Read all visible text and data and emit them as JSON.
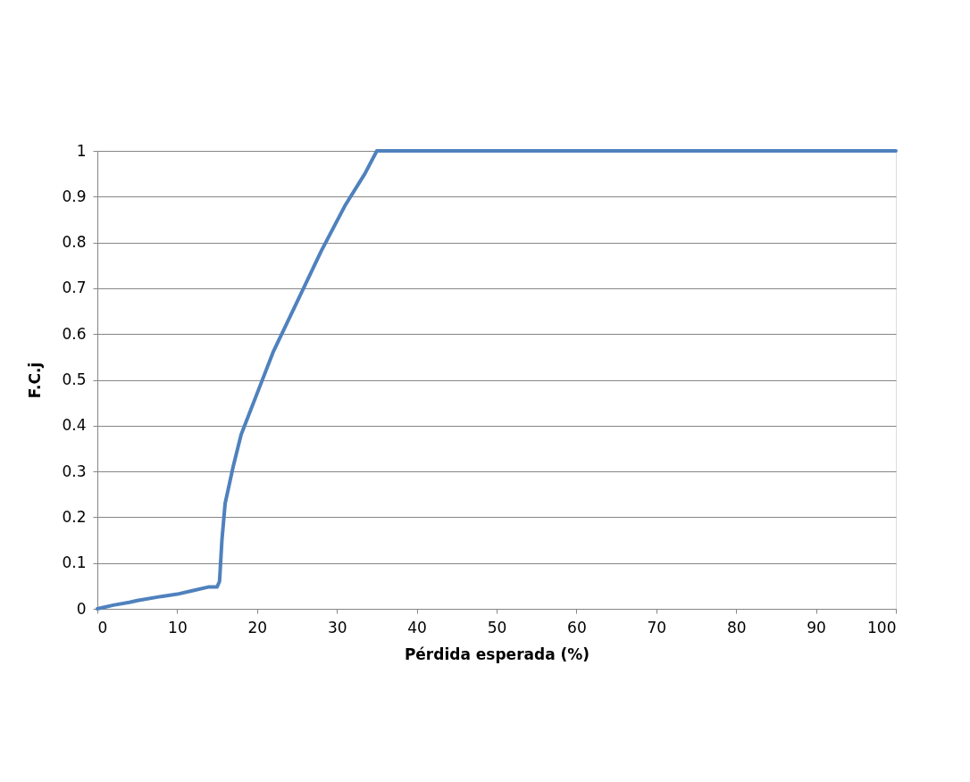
{
  "chart_data": {
    "type": "line",
    "xlabel": "Pérdida esperada (%)",
    "ylabel": "F.C.j",
    "x": [
      0,
      2,
      4,
      5,
      8,
      10,
      12,
      14,
      15,
      15.3,
      15.6,
      16,
      17,
      18,
      20,
      22,
      25,
      28,
      31,
      33.5,
      35,
      100
    ],
    "series": [
      {
        "color": "#4f81bd",
        "values": [
          0,
          0.008,
          0.014,
          0.018,
          0.027,
          0.032,
          0.04,
          0.048,
          0.048,
          0.06,
          0.15,
          0.23,
          0.31,
          0.38,
          0.47,
          0.56,
          0.67,
          0.78,
          0.88,
          0.95,
          1.0,
          1.0
        ]
      }
    ],
    "xlim": [
      0,
      100
    ],
    "xticks": [
      0,
      10,
      20,
      30,
      40,
      50,
      60,
      70,
      80,
      90,
      100
    ],
    "ylim": [
      0,
      1
    ],
    "yticks": [
      0,
      0.1,
      0.2,
      0.3,
      0.4,
      0.5,
      0.6,
      0.7,
      0.8,
      0.9,
      1
    ],
    "grid": "y",
    "marker": "none",
    "line_style": "solid"
  }
}
